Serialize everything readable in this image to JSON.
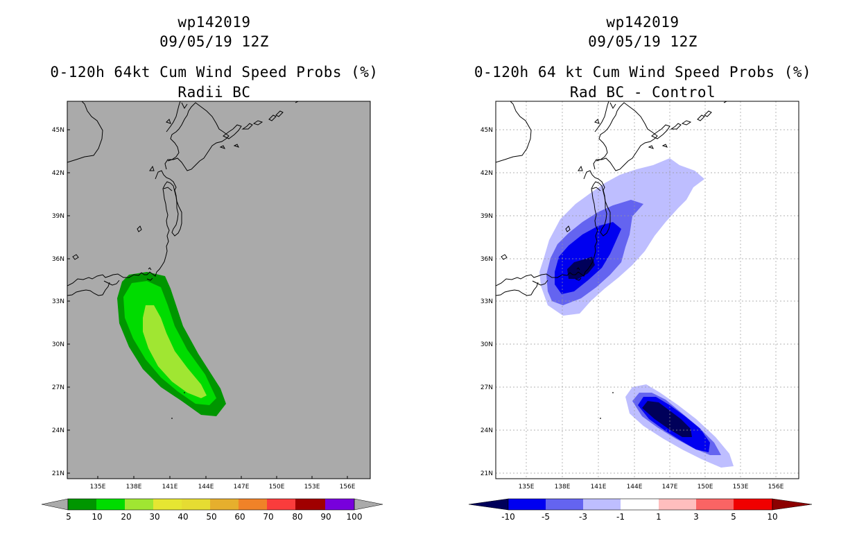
{
  "left_panel": {
    "title_line1": "wp142019",
    "title_line2": "09/05/19 12Z",
    "title_line3": "0-120h 64kt Cum Wind Speed Probs (%)",
    "title_line4": "Radii BC",
    "colorbar": {
      "labels": [
        "5",
        "10",
        "20",
        "30",
        "40",
        "50",
        "60",
        "70",
        "80",
        "90",
        "100"
      ],
      "colors": [
        "#009600",
        "#00dc00",
        "#a0e632",
        "#e6e632",
        "#e6dc32",
        "#e6af2d",
        "#f08228",
        "#fa3c3c",
        "#a00000",
        "#7800dc",
        "#aaaaaa"
      ]
    }
  },
  "right_panel": {
    "title_line1": "wp142019",
    "title_line2": "09/05/19 12Z",
    "title_line3": "0-120h 64 kt Cum Wind Speed Probs (%)",
    "title_line4": "Rad BC - Control",
    "colorbar": {
      "labels": [
        "-10",
        "-5",
        "-3",
        "-1",
        "1",
        "3",
        "5",
        "10"
      ],
      "colors": [
        "#00005a",
        "#0000f0",
        "#6464f0",
        "#bebeff",
        "#ffffff",
        "#ffbebe",
        "#fa6464",
        "#f00000",
        "#8c0000"
      ]
    }
  },
  "axes": {
    "lon_labels": [
      "135E",
      "138E",
      "141E",
      "144E",
      "147E",
      "150E",
      "153E",
      "156E"
    ],
    "lat_labels": [
      "45N",
      "42N",
      "39N",
      "36N",
      "33N",
      "30N",
      "27N",
      "24N",
      "21N"
    ]
  },
  "colors": {
    "map_background_left": "#aaaaaa",
    "map_background_right": "#ffffff",
    "coastline": "#000000"
  }
}
